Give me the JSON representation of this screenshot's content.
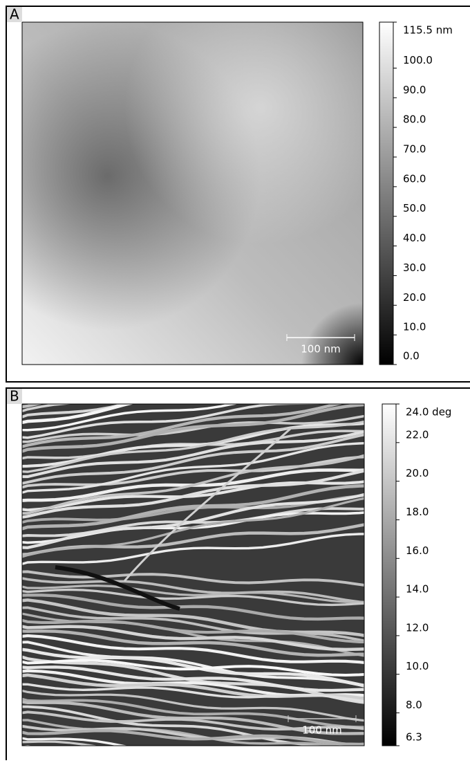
{
  "panels": [
    {
      "label": "A",
      "scale_bar": "100 nm",
      "colorbar": {
        "ticks": [
          {
            "value": 115.5,
            "label": "115.5 nm"
          },
          {
            "value": 100,
            "label": "100.0"
          },
          {
            "value": 90,
            "label": "90.0"
          },
          {
            "value": 80,
            "label": "80.0"
          },
          {
            "value": 70,
            "label": "70.0"
          },
          {
            "value": 60,
            "label": "60.0"
          },
          {
            "value": 50,
            "label": "50.0"
          },
          {
            "value": 40,
            "label": "40.0"
          },
          {
            "value": 30,
            "label": "30.0"
          },
          {
            "value": 20,
            "label": "20.0"
          },
          {
            "value": 10,
            "label": "10.0"
          },
          {
            "value": 0,
            "label": "0.0"
          }
        ]
      }
    },
    {
      "label": "B",
      "scale_bar": "100 nm",
      "colorbar": {
        "ticks": [
          {
            "value": 24,
            "label": "24.0 deg"
          },
          {
            "value": 22,
            "label": "22.0"
          },
          {
            "value": 20,
            "label": "20.0"
          },
          {
            "value": 18,
            "label": "18.0"
          },
          {
            "value": 16,
            "label": "16.0"
          },
          {
            "value": 14,
            "label": "14.0"
          },
          {
            "value": 12,
            "label": "12.0"
          },
          {
            "value": 10,
            "label": "10.0"
          },
          {
            "value": 8,
            "label": "8.0"
          },
          {
            "value": 6.3,
            "label": "6.3"
          }
        ]
      }
    }
  ]
}
